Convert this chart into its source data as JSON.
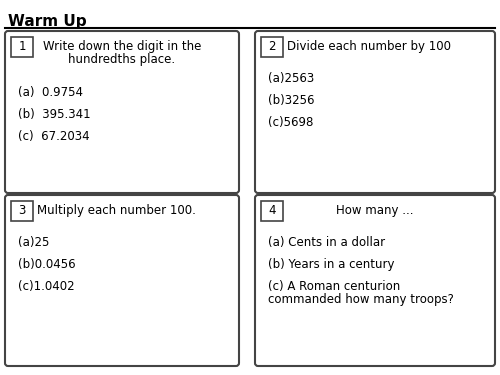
{
  "title": "Warm Up",
  "bg_color": "#ffffff",
  "boxes": [
    {
      "num": "1",
      "header": [
        "Write down the digit in the",
        "hundredths place."
      ],
      "header_align": "center",
      "items": [
        "(a)  0.9754",
        "(b)  395.341",
        "(c)  67.2034"
      ]
    },
    {
      "num": "2",
      "header": [
        "Divide each number by 100"
      ],
      "header_align": "left",
      "items": [
        "(a)2563",
        "(b)3256",
        "(c)5698"
      ]
    },
    {
      "num": "3",
      "header": [
        "Multiply each number 100."
      ],
      "header_align": "left",
      "items": [
        "(a)25",
        "(b)0.0456",
        "(c)1.0402"
      ]
    },
    {
      "num": "4",
      "header": [
        "How many ..."
      ],
      "header_align": "center",
      "items": [
        "(a) Cents in a dollar",
        "(b) Years in a century",
        "(c) A Roman centurion\ncommanded how many troops?"
      ]
    }
  ]
}
